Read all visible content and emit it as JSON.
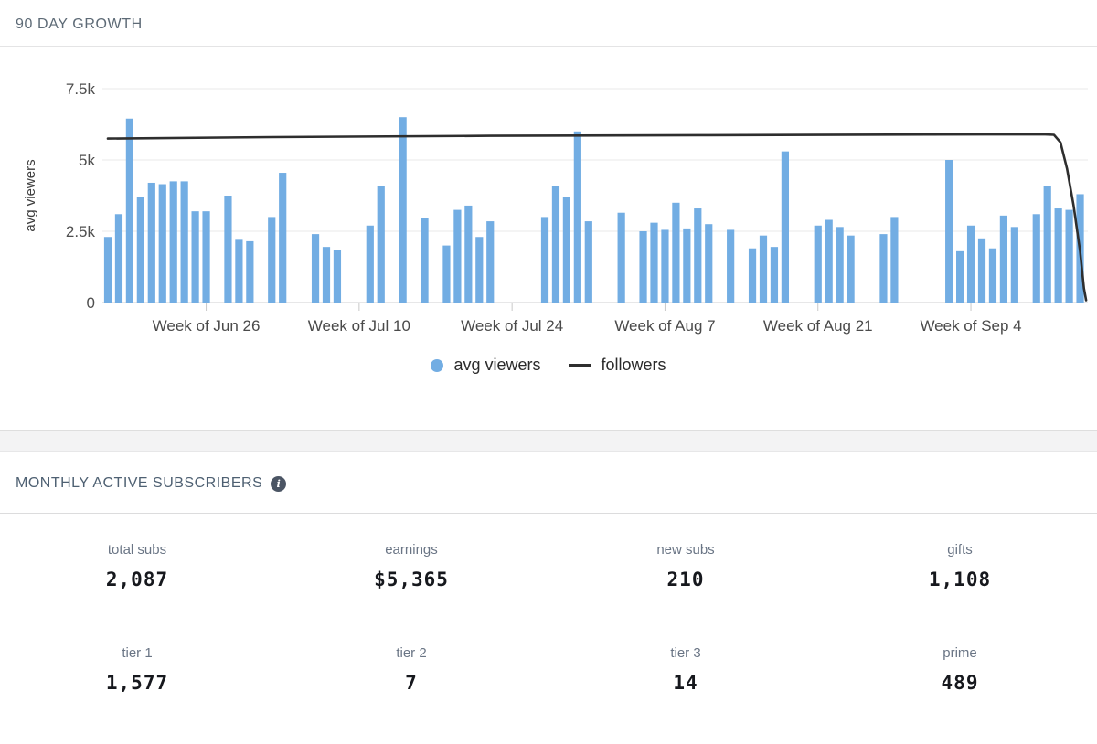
{
  "growth": {
    "title": "90 DAY GROWTH"
  },
  "chart_data": {
    "type": "bar",
    "title": "90 DAY GROWTH",
    "xlabel": "",
    "ylabel": "avg viewers",
    "x_unit": "day",
    "num_days": 90,
    "ylim": [
      0,
      7500
    ],
    "grid": true,
    "legend_position": "bottom",
    "y_ticks": [
      {
        "value": 0,
        "label": "0"
      },
      {
        "value": 2500,
        "label": "2.5k"
      },
      {
        "value": 5000,
        "label": "5k"
      },
      {
        "value": 7500,
        "label": "7.5k"
      }
    ],
    "x_ticks": [
      {
        "day": 9,
        "label": "Week of Jun 26"
      },
      {
        "day": 23,
        "label": "Week of Jul 10"
      },
      {
        "day": 37,
        "label": "Week of Jul 24"
      },
      {
        "day": 51,
        "label": "Week of Aug 7"
      },
      {
        "day": 65,
        "label": "Week of Aug 21"
      },
      {
        "day": 79,
        "label": "Week of Sep 4"
      }
    ],
    "series": [
      {
        "name": "avg viewers",
        "type": "bar",
        "color": "#72ade3",
        "values_by_day": [
          2300,
          3100,
          6450,
          3700,
          4200,
          4150,
          4250,
          4250,
          3200,
          3200,
          null,
          3750,
          2200,
          2150,
          null,
          3000,
          4550,
          null,
          null,
          2400,
          1950,
          1850,
          null,
          null,
          2700,
          4100,
          null,
          6500,
          null,
          2950,
          null,
          2000,
          3250,
          3400,
          2300,
          2850,
          null,
          null,
          null,
          null,
          3000,
          4100,
          3700,
          6000,
          2850,
          null,
          null,
          3150,
          null,
          2500,
          2800,
          2550,
          3500,
          2600,
          3300,
          2750,
          null,
          2550,
          null,
          1900,
          2350,
          1950,
          5300,
          null,
          null,
          2700,
          2900,
          2650,
          2350,
          null,
          null,
          2400,
          3000,
          null,
          null,
          null,
          null,
          5000,
          1800,
          2700,
          2250,
          1900,
          3050,
          2650,
          null,
          3100,
          4100,
          3300,
          3250,
          3800
        ]
      },
      {
        "name": "followers",
        "type": "line",
        "color": "#2e2e2e",
        "points_day_value": [
          [
            0,
            5750
          ],
          [
            15,
            5800
          ],
          [
            35,
            5845
          ],
          [
            55,
            5870
          ],
          [
            75,
            5890
          ],
          [
            85.5,
            5900
          ],
          [
            86.6,
            5880
          ],
          [
            87.2,
            5620
          ],
          [
            87.8,
            4700
          ],
          [
            88.4,
            3400
          ],
          [
            89.0,
            1800
          ],
          [
            89.35,
            500
          ],
          [
            89.55,
            80
          ]
        ]
      }
    ],
    "legend": [
      {
        "label": "avg viewers",
        "marker": "dot",
        "color": "#72ade3"
      },
      {
        "label": "followers",
        "marker": "line",
        "color": "#2e2e2e"
      }
    ]
  },
  "subscribers": {
    "title": "MONTHLY ACTIVE SUBSCRIBERS",
    "info_icon": "i",
    "stats": [
      {
        "label": "total subs",
        "value": "2,087"
      },
      {
        "label": "earnings",
        "value": "$5,365"
      },
      {
        "label": "new subs",
        "value": "210"
      },
      {
        "label": "gifts",
        "value": "1,108"
      },
      {
        "label": "tier 1",
        "value": "1,577"
      },
      {
        "label": "tier 2",
        "value": "7"
      },
      {
        "label": "tier 3",
        "value": "14"
      },
      {
        "label": "prime",
        "value": "489"
      }
    ]
  }
}
